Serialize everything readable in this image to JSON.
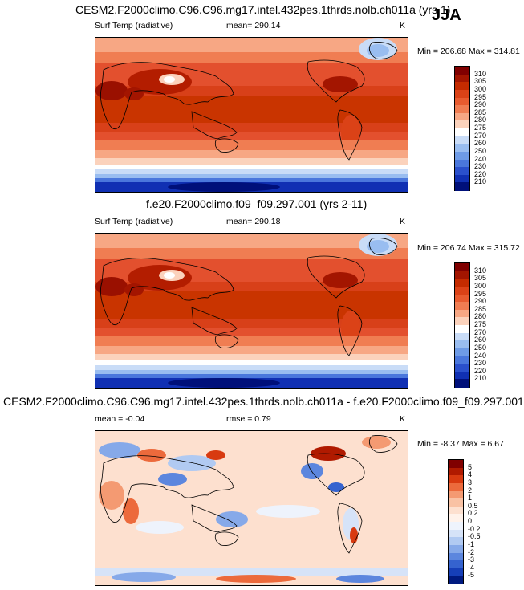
{
  "season": "JJA",
  "panels": [
    {
      "title": "CESM2.F2000climo.C96.C96.mg17.intel.432pes.1thrds.nolb.ch011a (yrs 1)",
      "left_label": "Surf Temp (radiative)",
      "center_label": "mean= 290.14",
      "right_label": "K",
      "minmax": "Min = 206.68 Max = 314.81",
      "colorbar": {
        "labels": [
          "310",
          "305",
          "300",
          "295",
          "290",
          "285",
          "280",
          "275",
          "270",
          "260",
          "250",
          "240",
          "230",
          "220",
          "210"
        ],
        "colors": [
          "#800000",
          "#a31500",
          "#c42b00",
          "#db4217",
          "#e85b2f",
          "#f07d52",
          "#f7a784",
          "#fbd2bc",
          "#ffffff",
          "#c9dcf7",
          "#99bdf0",
          "#6e9be6",
          "#4a77dc",
          "#2a50cc",
          "#1030b3",
          "#00107a"
        ]
      }
    },
    {
      "title": "f.e20.F2000climo.f09_f09.297.001 (yrs 2-11)",
      "left_label": "Surf Temp (radiative)",
      "center_label": "mean= 290.18",
      "right_label": "K",
      "minmax": "Min = 206.74 Max = 315.72",
      "colorbar": {
        "labels": [
          "310",
          "305",
          "300",
          "295",
          "290",
          "285",
          "280",
          "275",
          "270",
          "260",
          "250",
          "240",
          "230",
          "220",
          "210"
        ],
        "colors": [
          "#800000",
          "#a31500",
          "#c42b00",
          "#db4217",
          "#e85b2f",
          "#f07d52",
          "#f7a784",
          "#fbd2bc",
          "#ffffff",
          "#c9dcf7",
          "#99bdf0",
          "#6e9be6",
          "#4a77dc",
          "#2a50cc",
          "#1030b3",
          "#00107a"
        ]
      }
    },
    {
      "title": "CESM2.F2000climo.C96.C96.mg17.intel.432pes.1thrds.nolb.ch011a - f.e20.F2000climo.f09_f09.297.001",
      "left_label": "mean = -0.04",
      "center_label": "rmse =   0.79",
      "right_label": "K",
      "minmax": "Min = -8.37 Max =   6.67",
      "colorbar": {
        "labels": [
          "5",
          "4",
          "3",
          "2",
          "1",
          "0.5",
          "0.2",
          "0",
          "-0.2",
          "-0.5",
          "-1",
          "-2",
          "-3",
          "-4",
          "-5"
        ],
        "colors": [
          "#800000",
          "#b01a00",
          "#d83a10",
          "#ec6a3c",
          "#f49a72",
          "#f9c2a4",
          "#fde0cf",
          "#fff2ea",
          "#eef3fc",
          "#d6e3f8",
          "#b1caf2",
          "#86a9e9",
          "#5c86de",
          "#3563cf",
          "#163fb8",
          "#001a80"
        ]
      }
    }
  ]
}
